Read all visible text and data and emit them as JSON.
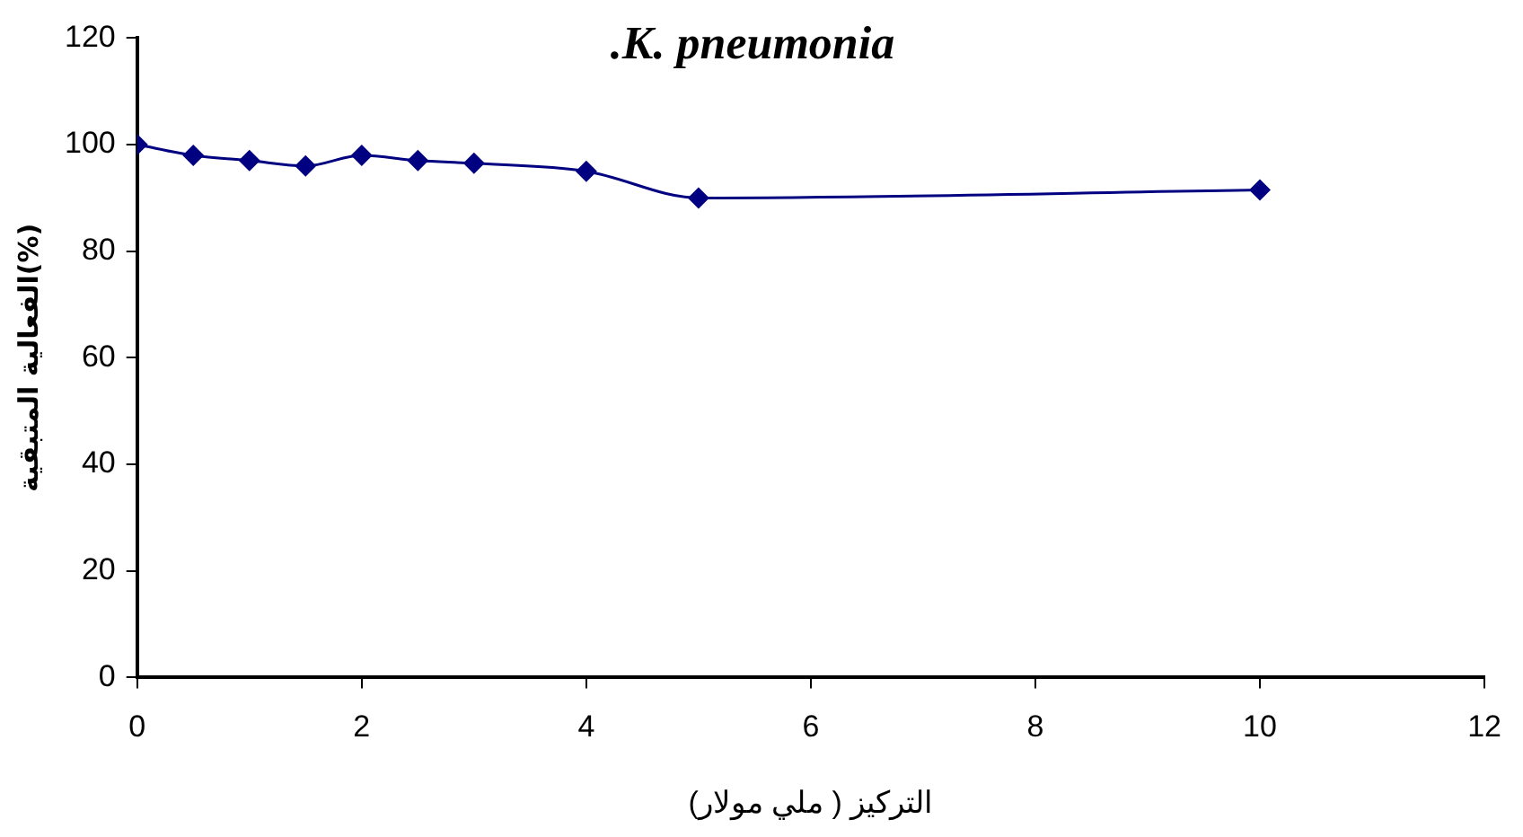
{
  "chart_data": {
    "type": "line",
    "title": ".K. pneumonia",
    "xlabel": "التركيز ( ملي مولار)",
    "ylabel": "الفعالية المتبقية(%)",
    "x": [
      0,
      0.5,
      1,
      1.5,
      2,
      2.5,
      3,
      4,
      5,
      10
    ],
    "series": [
      {
        "color": "#000080",
        "values": [
          100,
          98,
          97,
          96,
          98,
          97,
          96.5,
          95,
          90,
          91.5
        ]
      }
    ],
    "xlim": [
      0,
      12
    ],
    "xticks": [
      0,
      2,
      4,
      6,
      8,
      10,
      12
    ],
    "ylim": [
      0,
      120
    ],
    "yticks": [
      0,
      20,
      40,
      60,
      80,
      100,
      120
    ],
    "grid": false,
    "legend": false,
    "marker": "diamond",
    "line_style": "solid"
  }
}
